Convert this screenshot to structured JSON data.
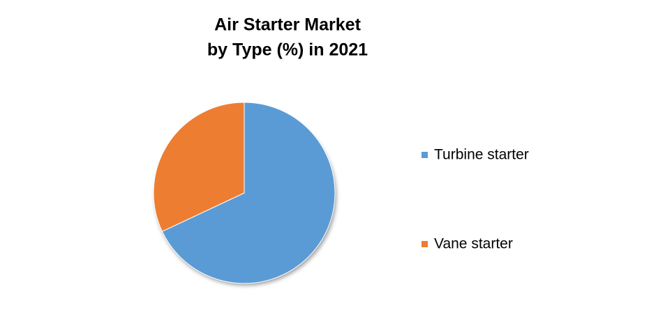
{
  "chart_data": {
    "type": "pie",
    "title": [
      "Air Starter Market",
      "by Type (%) in 2021"
    ],
    "series": [
      {
        "name": "Turbine starter",
        "color": "#5b9bd5",
        "values": [
          68
        ]
      },
      {
        "name": "Vane starter",
        "color": "#ed7d31",
        "values": [
          32
        ]
      }
    ],
    "legend": "right"
  }
}
